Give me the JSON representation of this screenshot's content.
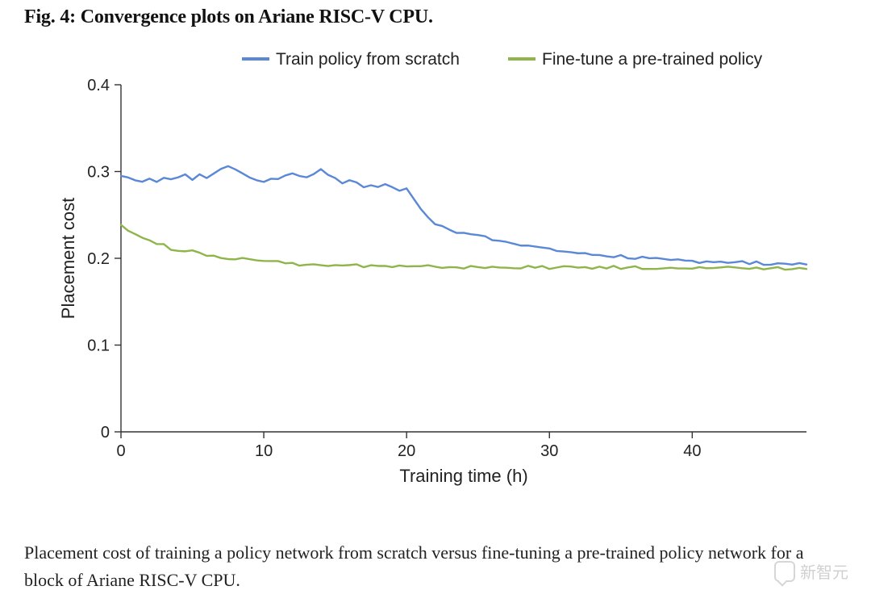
{
  "figure": {
    "title": "Fig. 4: Convergence plots on Ariane RISC-V CPU.",
    "caption": "Placement cost of training a policy network from scratch versus fine-tuning a pre-trained policy network for a block of Ariane RISC-V CPU.",
    "title_fontsize": 24,
    "caption_fontsize": 22
  },
  "watermark": {
    "text": "新智元"
  },
  "chart": {
    "type": "line",
    "background_color": "#ffffff",
    "axis_color": "#333333",
    "axis_linewidth": 1.4,
    "tick_length": 8,
    "tick_fontsize": 20,
    "label_fontsize": 22,
    "legend_fontsize": 21,
    "xlabel": "Training time (h)",
    "ylabel": "Placement cost",
    "xlim": [
      0,
      48
    ],
    "ylim": [
      0,
      0.4
    ],
    "xticks": [
      0,
      10,
      20,
      30,
      40
    ],
    "yticks": [
      0,
      0.1,
      0.2,
      0.3,
      0.4
    ],
    "legend": {
      "position": "top-center",
      "items": [
        {
          "label": "Train policy from scratch",
          "color": "#5a88d6",
          "dash_label": "— "
        },
        {
          "label": "Fine-tune a pre-trained policy",
          "color": "#8fb54a",
          "dash_label": "— "
        }
      ]
    },
    "series": [
      {
        "name": "Train policy from scratch",
        "color": "#5a88d6",
        "linewidth": 2.4,
        "data": [
          [
            0,
            0.295
          ],
          [
            0.5,
            0.293
          ],
          [
            1,
            0.291
          ],
          [
            1.5,
            0.289
          ],
          [
            2,
            0.292
          ],
          [
            2.5,
            0.288
          ],
          [
            3,
            0.294
          ],
          [
            3.5,
            0.29
          ],
          [
            4,
            0.293
          ],
          [
            4.5,
            0.297
          ],
          [
            5,
            0.291
          ],
          [
            5.5,
            0.296
          ],
          [
            6,
            0.292
          ],
          [
            6.5,
            0.299
          ],
          [
            7,
            0.303
          ],
          [
            7.5,
            0.307
          ],
          [
            8,
            0.302
          ],
          [
            8.5,
            0.299
          ],
          [
            9,
            0.293
          ],
          [
            9.5,
            0.29
          ],
          [
            10,
            0.289
          ],
          [
            10.5,
            0.293
          ],
          [
            11,
            0.29
          ],
          [
            11.5,
            0.294
          ],
          [
            12,
            0.299
          ],
          [
            12.5,
            0.295
          ],
          [
            13,
            0.292
          ],
          [
            13.5,
            0.298
          ],
          [
            14,
            0.303
          ],
          [
            14.5,
            0.296
          ],
          [
            15,
            0.292
          ],
          [
            15.5,
            0.287
          ],
          [
            16,
            0.291
          ],
          [
            16.5,
            0.286
          ],
          [
            17,
            0.282
          ],
          [
            17.5,
            0.285
          ],
          [
            18,
            0.282
          ],
          [
            18.5,
            0.286
          ],
          [
            19,
            0.283
          ],
          [
            19.5,
            0.277
          ],
          [
            20,
            0.281
          ],
          [
            20.5,
            0.269
          ],
          [
            21,
            0.258
          ],
          [
            21.5,
            0.246
          ],
          [
            22,
            0.24
          ],
          [
            22.5,
            0.236
          ],
          [
            23,
            0.233
          ],
          [
            23.5,
            0.23
          ],
          [
            24,
            0.229
          ],
          [
            24.5,
            0.228
          ],
          [
            25,
            0.226
          ],
          [
            25.5,
            0.225
          ],
          [
            26,
            0.222
          ],
          [
            26.5,
            0.221
          ],
          [
            27,
            0.219
          ],
          [
            27.5,
            0.218
          ],
          [
            28,
            0.216
          ],
          [
            28.5,
            0.215
          ],
          [
            29,
            0.213
          ],
          [
            29.5,
            0.212
          ],
          [
            30,
            0.21
          ],
          [
            30.5,
            0.209
          ],
          [
            31,
            0.208
          ],
          [
            31.5,
            0.207
          ],
          [
            32,
            0.206
          ],
          [
            32.5,
            0.205
          ],
          [
            33,
            0.204
          ],
          [
            33.5,
            0.204
          ],
          [
            34,
            0.203
          ],
          [
            34.5,
            0.202
          ],
          [
            35,
            0.203
          ],
          [
            35.5,
            0.201
          ],
          [
            36,
            0.2
          ],
          [
            36.5,
            0.201
          ],
          [
            37,
            0.199
          ],
          [
            37.5,
            0.199
          ],
          [
            38,
            0.198
          ],
          [
            38.5,
            0.197
          ],
          [
            39,
            0.198
          ],
          [
            39.5,
            0.197
          ],
          [
            40,
            0.197
          ],
          [
            40.5,
            0.196
          ],
          [
            41,
            0.197
          ],
          [
            41.5,
            0.196
          ],
          [
            42,
            0.197
          ],
          [
            42.5,
            0.195
          ],
          [
            43,
            0.195
          ],
          [
            43.5,
            0.196
          ],
          [
            44,
            0.194
          ],
          [
            44.5,
            0.195
          ],
          [
            45,
            0.194
          ],
          [
            45.5,
            0.193
          ],
          [
            46,
            0.194
          ],
          [
            46.5,
            0.194
          ],
          [
            47,
            0.194
          ],
          [
            47.5,
            0.193
          ],
          [
            48,
            0.193
          ]
        ]
      },
      {
        "name": "Fine-tune a pre-trained policy",
        "color": "#8fb54a",
        "linewidth": 2.4,
        "data": [
          [
            0,
            0.24
          ],
          [
            0.5,
            0.232
          ],
          [
            1,
            0.228
          ],
          [
            1.5,
            0.225
          ],
          [
            2,
            0.22
          ],
          [
            2.5,
            0.217
          ],
          [
            3,
            0.215
          ],
          [
            3.5,
            0.211
          ],
          [
            4,
            0.21
          ],
          [
            4.5,
            0.209
          ],
          [
            5,
            0.208
          ],
          [
            5.5,
            0.205
          ],
          [
            6,
            0.204
          ],
          [
            6.5,
            0.203
          ],
          [
            7,
            0.2
          ],
          [
            7.5,
            0.2
          ],
          [
            8,
            0.199
          ],
          [
            8.5,
            0.201
          ],
          [
            9,
            0.198
          ],
          [
            9.5,
            0.199
          ],
          [
            10,
            0.197
          ],
          [
            10.5,
            0.197
          ],
          [
            11,
            0.196
          ],
          [
            11.5,
            0.194
          ],
          [
            12,
            0.195
          ],
          [
            12.5,
            0.193
          ],
          [
            13,
            0.194
          ],
          [
            13.5,
            0.194
          ],
          [
            14,
            0.193
          ],
          [
            14.5,
            0.192
          ],
          [
            15,
            0.193
          ],
          [
            15.5,
            0.191
          ],
          [
            16,
            0.192
          ],
          [
            16.5,
            0.192
          ],
          [
            17,
            0.191
          ],
          [
            17.5,
            0.192
          ],
          [
            18,
            0.191
          ],
          [
            18.5,
            0.191
          ],
          [
            19,
            0.19
          ],
          [
            19.5,
            0.191
          ],
          [
            20,
            0.19
          ],
          [
            20.5,
            0.19
          ],
          [
            21,
            0.19
          ],
          [
            21.5,
            0.191
          ],
          [
            22,
            0.189
          ],
          [
            22.5,
            0.19
          ],
          [
            23,
            0.19
          ],
          [
            23.5,
            0.19
          ],
          [
            24,
            0.189
          ],
          [
            24.5,
            0.19
          ],
          [
            25,
            0.19
          ],
          [
            25.5,
            0.189
          ],
          [
            26,
            0.19
          ],
          [
            26.5,
            0.189
          ],
          [
            27,
            0.19
          ],
          [
            27.5,
            0.19
          ],
          [
            28,
            0.189
          ],
          [
            28.5,
            0.19
          ],
          [
            29,
            0.189
          ],
          [
            29.5,
            0.19
          ],
          [
            30,
            0.189
          ],
          [
            30.5,
            0.189
          ],
          [
            31,
            0.19
          ],
          [
            31.5,
            0.189
          ],
          [
            32,
            0.189
          ],
          [
            32.5,
            0.19
          ],
          [
            33,
            0.189
          ],
          [
            33.5,
            0.189
          ],
          [
            34,
            0.189
          ],
          [
            34.5,
            0.19
          ],
          [
            35,
            0.189
          ],
          [
            35.5,
            0.189
          ],
          [
            36,
            0.19
          ],
          [
            36.5,
            0.188
          ],
          [
            37,
            0.189
          ],
          [
            37.5,
            0.189
          ],
          [
            38,
            0.189
          ],
          [
            38.5,
            0.188
          ],
          [
            39,
            0.189
          ],
          [
            39.5,
            0.189
          ],
          [
            40,
            0.188
          ],
          [
            40.5,
            0.189
          ],
          [
            41,
            0.188
          ],
          [
            41.5,
            0.189
          ],
          [
            42,
            0.188
          ],
          [
            42.5,
            0.189
          ],
          [
            43,
            0.188
          ],
          [
            43.5,
            0.189
          ],
          [
            44,
            0.188
          ],
          [
            44.5,
            0.189
          ],
          [
            45,
            0.188
          ],
          [
            45.5,
            0.188
          ],
          [
            46,
            0.189
          ],
          [
            46.5,
            0.188
          ],
          [
            47,
            0.189
          ],
          [
            47.5,
            0.188
          ],
          [
            48,
            0.188
          ]
        ]
      }
    ]
  }
}
